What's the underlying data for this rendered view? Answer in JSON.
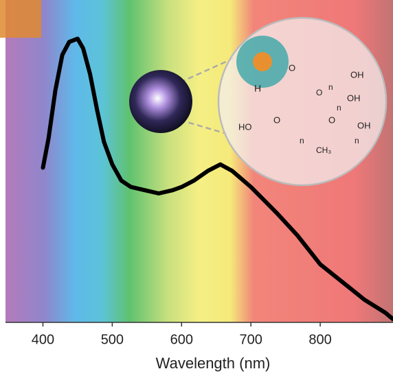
{
  "chart_data": {
    "type": "line",
    "xlabel": "Wavelength (nm)",
    "x": [
      400,
      408,
      418,
      428,
      438,
      450,
      458,
      468,
      478,
      488,
      500,
      513,
      527,
      547,
      567,
      587,
      600,
      618,
      638,
      656,
      673,
      700,
      737,
      767,
      800,
      835,
      864,
      894,
      905
    ],
    "values": [
      0.48,
      0.57,
      0.72,
      0.83,
      0.87,
      0.88,
      0.85,
      0.77,
      0.66,
      0.56,
      0.49,
      0.44,
      0.42,
      0.41,
      0.4,
      0.41,
      0.42,
      0.44,
      0.47,
      0.49,
      0.47,
      0.42,
      0.34,
      0.27,
      0.18,
      0.12,
      0.07,
      0.03,
      0.01
    ],
    "color": "#000000",
    "xlim": [
      346,
      905
    ],
    "xticks": [
      400,
      500,
      600,
      700,
      800
    ],
    "ylim": [
      0,
      1
    ],
    "annotations": [
      "H",
      "O",
      "n",
      "OH",
      "O",
      "n",
      "OH",
      "HO",
      "O",
      "n",
      "O",
      "n",
      "OH",
      "CH₃"
    ]
  }
}
